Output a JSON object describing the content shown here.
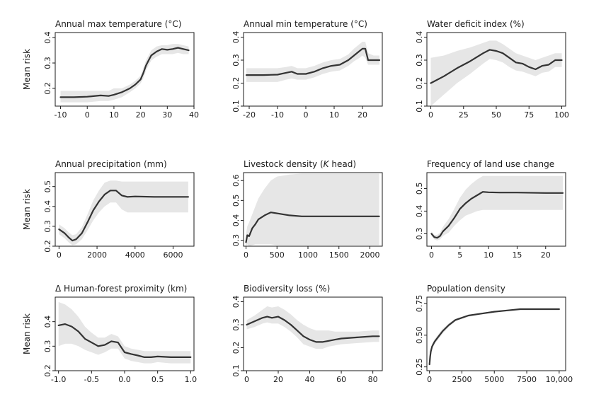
{
  "colors": {
    "line": "#333333",
    "band": "#e6e6e6",
    "axis": "#1a1a1a"
  },
  "chart_data": [
    {
      "type": "line",
      "title": "Annual max temperature (°C)",
      "ylabel": "Mean risk",
      "xlim": [
        -12,
        40
      ],
      "ylim": [
        0.13,
        0.42
      ],
      "xticks": [
        -10,
        0,
        10,
        20,
        30,
        40
      ],
      "xtick_labels": [
        "-10",
        "0",
        "10",
        "20",
        "30",
        "40"
      ],
      "yticks": [
        0.2,
        0.3,
        0.4
      ],
      "ytick_labels": [
        "0.2",
        "0.3",
        "0.4"
      ],
      "x": [
        -10,
        -5,
        0,
        5,
        8,
        10,
        13,
        16,
        18,
        20,
        21,
        22,
        23,
        24,
        26,
        28,
        30,
        32,
        34,
        36,
        38
      ],
      "y": [
        0.165,
        0.165,
        0.167,
        0.172,
        0.17,
        0.175,
        0.185,
        0.2,
        0.215,
        0.235,
        0.26,
        0.29,
        0.31,
        0.33,
        0.345,
        0.355,
        0.352,
        0.355,
        0.36,
        0.355,
        0.35
      ],
      "upper": [
        0.19,
        0.19,
        0.19,
        0.19,
        0.19,
        0.2,
        0.2,
        0.215,
        0.23,
        0.25,
        0.28,
        0.31,
        0.33,
        0.35,
        0.365,
        0.37,
        0.37,
        0.375,
        0.375,
        0.37,
        0.365
      ],
      "lower": [
        0.145,
        0.145,
        0.145,
        0.15,
        0.15,
        0.155,
        0.165,
        0.185,
        0.2,
        0.22,
        0.24,
        0.27,
        0.29,
        0.31,
        0.325,
        0.335,
        0.335,
        0.335,
        0.34,
        0.335,
        0.335
      ]
    },
    {
      "type": "line",
      "title": "Annual min temperature (°C)",
      "ylabel": "",
      "xlim": [
        -22,
        27
      ],
      "ylim": [
        0.1,
        0.42
      ],
      "xticks": [
        -20,
        -10,
        0,
        10,
        20
      ],
      "xtick_labels": [
        "-20",
        "-10",
        "0",
        "10",
        "20"
      ],
      "yticks": [
        0.1,
        0.2,
        0.3,
        0.4
      ],
      "ytick_labels": [
        "0.1",
        "0.2",
        "0.3",
        "0.4"
      ],
      "x": [
        -21,
        -15,
        -10,
        -7,
        -5,
        -3,
        0,
        3,
        6,
        9,
        12,
        15,
        17,
        19,
        20,
        21,
        22,
        24,
        26
      ],
      "y": [
        0.235,
        0.235,
        0.237,
        0.245,
        0.25,
        0.24,
        0.24,
        0.25,
        0.265,
        0.275,
        0.28,
        0.3,
        0.32,
        0.34,
        0.35,
        0.35,
        0.3,
        0.3,
        0.3
      ],
      "upper": [
        0.265,
        0.265,
        0.265,
        0.27,
        0.275,
        0.265,
        0.265,
        0.275,
        0.29,
        0.3,
        0.305,
        0.325,
        0.35,
        0.37,
        0.38,
        0.38,
        0.33,
        0.32,
        0.32
      ],
      "lower": [
        0.205,
        0.205,
        0.205,
        0.215,
        0.22,
        0.215,
        0.215,
        0.225,
        0.24,
        0.25,
        0.255,
        0.275,
        0.295,
        0.31,
        0.32,
        0.31,
        0.28,
        0.28,
        0.28
      ]
    },
    {
      "type": "line",
      "title": "Water deficit index (%)",
      "ylabel": "",
      "xlim": [
        -3,
        103
      ],
      "ylim": [
        0.1,
        0.42
      ],
      "xticks": [
        0,
        25,
        50,
        75,
        100
      ],
      "xtick_labels": [
        "0",
        "25",
        "50",
        "75",
        "100"
      ],
      "yticks": [
        0.1,
        0.2,
        0.3,
        0.4
      ],
      "ytick_labels": [
        "0.1",
        "0.2",
        "0.3",
        "0.4"
      ],
      "x": [
        0,
        10,
        20,
        30,
        40,
        45,
        50,
        55,
        60,
        65,
        70,
        75,
        80,
        85,
        90,
        95,
        100
      ],
      "y": [
        0.2,
        0.23,
        0.265,
        0.295,
        0.33,
        0.345,
        0.34,
        0.33,
        0.31,
        0.29,
        0.285,
        0.27,
        0.26,
        0.275,
        0.28,
        0.3,
        0.3
      ],
      "upper": [
        0.31,
        0.32,
        0.34,
        0.355,
        0.375,
        0.385,
        0.385,
        0.37,
        0.35,
        0.33,
        0.32,
        0.31,
        0.3,
        0.31,
        0.32,
        0.33,
        0.33
      ],
      "lower": [
        0.1,
        0.15,
        0.2,
        0.24,
        0.285,
        0.305,
        0.3,
        0.29,
        0.27,
        0.255,
        0.25,
        0.24,
        0.23,
        0.245,
        0.25,
        0.27,
        0.27
      ]
    },
    {
      "type": "line",
      "title": "Annual precipitation (mm)",
      "ylabel": "Mean risk",
      "xlim": [
        -200,
        7100
      ],
      "ylim": [
        0.2,
        0.57
      ],
      "xticks": [
        0,
        2000,
        4000,
        6000
      ],
      "xtick_labels": [
        "0",
        "2000",
        "4000",
        "6000"
      ],
      "yticks": [
        0.2,
        0.3,
        0.4,
        0.5
      ],
      "ytick_labels": [
        "0.2",
        "0.3",
        "0.4",
        "0.5"
      ],
      "x": [
        0,
        300,
        500,
        700,
        900,
        1200,
        1500,
        1800,
        2100,
        2400,
        2700,
        3000,
        3300,
        3600,
        4000,
        5000,
        6000,
        6800
      ],
      "y": [
        0.285,
        0.265,
        0.245,
        0.228,
        0.235,
        0.265,
        0.32,
        0.38,
        0.425,
        0.46,
        0.48,
        0.48,
        0.455,
        0.448,
        0.45,
        0.448,
        0.448,
        0.448
      ],
      "upper": [
        0.31,
        0.29,
        0.27,
        0.255,
        0.26,
        0.295,
        0.36,
        0.43,
        0.48,
        0.52,
        0.53,
        0.53,
        0.525,
        0.525,
        0.525,
        0.525,
        0.525,
        0.525
      ],
      "lower": [
        0.26,
        0.24,
        0.22,
        0.205,
        0.21,
        0.235,
        0.28,
        0.33,
        0.37,
        0.4,
        0.42,
        0.42,
        0.385,
        0.37,
        0.37,
        0.37,
        0.37,
        0.37
      ]
    },
    {
      "type": "line",
      "title": "Livestock density (K head)",
      "ylabel": "",
      "xlim": [
        -40,
        2200
      ],
      "ylim": [
        0.27,
        0.64
      ],
      "xticks": [
        0,
        500,
        1000,
        1500,
        2000
      ],
      "xtick_labels": [
        "0",
        "500",
        "1000",
        "1500",
        "2000"
      ],
      "yticks": [
        0.3,
        0.4,
        0.5,
        0.6
      ],
      "ytick_labels": [
        "0.3",
        "0.4",
        "0.5",
        "0.6"
      ],
      "x": [
        0,
        20,
        50,
        100,
        150,
        200,
        300,
        400,
        500,
        700,
        900,
        1500,
        2150
      ],
      "y": [
        0.29,
        0.325,
        0.32,
        0.36,
        0.38,
        0.405,
        0.425,
        0.44,
        0.435,
        0.425,
        0.42,
        0.42,
        0.42
      ],
      "upper": [
        0.33,
        0.37,
        0.39,
        0.43,
        0.47,
        0.51,
        0.56,
        0.6,
        0.62,
        0.63,
        0.635,
        0.635,
        0.635
      ],
      "lower": [
        0.27,
        0.28,
        0.27,
        0.275,
        0.28,
        0.28,
        0.28,
        0.28,
        0.275,
        0.275,
        0.275,
        0.275,
        0.275
      ]
    },
    {
      "type": "line",
      "title": "Frequency of land use change",
      "ylabel": "",
      "xlim": [
        -0.8,
        23.5
      ],
      "ylim": [
        0.245,
        0.57
      ],
      "xticks": [
        0,
        5,
        10,
        15,
        20
      ],
      "xtick_labels": [
        "0",
        "5",
        "10",
        "15",
        "20"
      ],
      "yticks": [
        0.3,
        0.4,
        0.5
      ],
      "ytick_labels": [
        "0.3",
        "0.4",
        "0.5"
      ],
      "x": [
        0,
        0.5,
        1,
        1.5,
        2,
        3,
        4,
        5,
        6,
        7,
        8,
        9,
        10,
        12,
        15,
        20,
        23
      ],
      "y": [
        0.3,
        0.285,
        0.282,
        0.29,
        0.31,
        0.335,
        0.37,
        0.41,
        0.435,
        0.455,
        0.47,
        0.485,
        0.483,
        0.482,
        0.482,
        0.48,
        0.48
      ],
      "upper": [
        0.31,
        0.295,
        0.295,
        0.305,
        0.33,
        0.365,
        0.41,
        0.46,
        0.495,
        0.52,
        0.54,
        0.555,
        0.555,
        0.555,
        0.555,
        0.555,
        0.555
      ],
      "lower": [
        0.29,
        0.275,
        0.27,
        0.275,
        0.29,
        0.305,
        0.335,
        0.36,
        0.38,
        0.39,
        0.4,
        0.405,
        0.405,
        0.405,
        0.405,
        0.405,
        0.405
      ]
    },
    {
      "type": "line",
      "title": "Δ Human-forest proximity (km)",
      "ylabel": "Mean risk",
      "xlim": [
        -1.05,
        1.05
      ],
      "ylim": [
        0.2,
        0.5
      ],
      "xticks": [
        -1,
        -0.5,
        0,
        0.5,
        1
      ],
      "xtick_labels": [
        "-1.0",
        "-0.5",
        "0.0",
        "0.5",
        "1.0"
      ],
      "yticks": [
        0.2,
        0.3,
        0.4
      ],
      "ytick_labels": [
        "0.2",
        "0.3",
        "0.4"
      ],
      "x": [
        -1,
        -0.9,
        -0.8,
        -0.7,
        -0.6,
        -0.5,
        -0.4,
        -0.3,
        -0.2,
        -0.1,
        0,
        0.1,
        0.2,
        0.3,
        0.4,
        0.5,
        0.7,
        1
      ],
      "y": [
        0.385,
        0.39,
        0.38,
        0.36,
        0.33,
        0.315,
        0.3,
        0.305,
        0.32,
        0.315,
        0.275,
        0.268,
        0.262,
        0.255,
        0.255,
        0.258,
        0.255,
        0.255
      ],
      "upper": [
        0.48,
        0.47,
        0.45,
        0.42,
        0.38,
        0.355,
        0.335,
        0.335,
        0.35,
        0.34,
        0.3,
        0.29,
        0.285,
        0.28,
        0.28,
        0.28,
        0.28,
        0.28
      ],
      "lower": [
        0.3,
        0.31,
        0.31,
        0.3,
        0.285,
        0.275,
        0.265,
        0.275,
        0.29,
        0.29,
        0.25,
        0.24,
        0.235,
        0.23,
        0.23,
        0.235,
        0.23,
        0.23
      ]
    },
    {
      "type": "line",
      "title": "Biodiversity loss (%)",
      "ylabel": "",
      "xlim": [
        -2,
        86
      ],
      "ylim": [
        0.1,
        0.42
      ],
      "xticks": [
        0,
        20,
        40,
        60,
        80
      ],
      "xtick_labels": [
        "0",
        "20",
        "40",
        "60",
        "80"
      ],
      "yticks": [
        0.1,
        0.2,
        0.3,
        0.4
      ],
      "ytick_labels": [
        "0.1",
        "0.2",
        "0.3",
        "0.4"
      ],
      "x": [
        0,
        5,
        10,
        13,
        16,
        20,
        24,
        28,
        32,
        36,
        40,
        44,
        48,
        52,
        56,
        60,
        70,
        80,
        84
      ],
      "y": [
        0.3,
        0.315,
        0.33,
        0.335,
        0.33,
        0.335,
        0.32,
        0.3,
        0.275,
        0.25,
        0.235,
        0.225,
        0.225,
        0.23,
        0.235,
        0.24,
        0.245,
        0.25,
        0.25
      ],
      "upper": [
        0.32,
        0.34,
        0.365,
        0.38,
        0.375,
        0.38,
        0.365,
        0.345,
        0.32,
        0.3,
        0.285,
        0.275,
        0.275,
        0.275,
        0.27,
        0.27,
        0.27,
        0.275,
        0.275
      ],
      "lower": [
        0.28,
        0.29,
        0.305,
        0.31,
        0.305,
        0.305,
        0.29,
        0.27,
        0.245,
        0.215,
        0.205,
        0.195,
        0.195,
        0.205,
        0.21,
        0.215,
        0.22,
        0.225,
        0.225
      ]
    },
    {
      "type": "line",
      "title": "Population density",
      "ylabel": "",
      "xlim": [
        -200,
        10500
      ],
      "ylim": [
        0.22,
        0.8
      ],
      "xticks": [
        0,
        2500,
        5000,
        7500,
        10000
      ],
      "xtick_labels": [
        "0",
        "2500",
        "5000",
        "7500",
        "10,000"
      ],
      "yticks": [
        0.25,
        0.5,
        0.75
      ],
      "ytick_labels": [
        "0.25",
        "0.50",
        "0.75"
      ],
      "x": [
        0,
        50,
        100,
        200,
        400,
        700,
        1000,
        1500,
        2000,
        3000,
        4000,
        5000,
        6000,
        7000,
        8000,
        9000,
        10000
      ],
      "y": [
        0.27,
        0.33,
        0.37,
        0.41,
        0.45,
        0.49,
        0.53,
        0.58,
        0.62,
        0.655,
        0.67,
        0.685,
        0.695,
        0.705,
        0.705,
        0.705,
        0.705
      ],
      "upper": [
        0.29,
        0.35,
        0.39,
        0.43,
        0.47,
        0.51,
        0.55,
        0.595,
        0.63,
        0.66,
        0.675,
        0.69,
        0.7,
        0.71,
        0.71,
        0.71,
        0.71
      ],
      "lower": [
        0.25,
        0.31,
        0.35,
        0.39,
        0.43,
        0.47,
        0.51,
        0.565,
        0.61,
        0.645,
        0.665,
        0.68,
        0.69,
        0.7,
        0.7,
        0.7,
        0.7
      ]
    }
  ]
}
